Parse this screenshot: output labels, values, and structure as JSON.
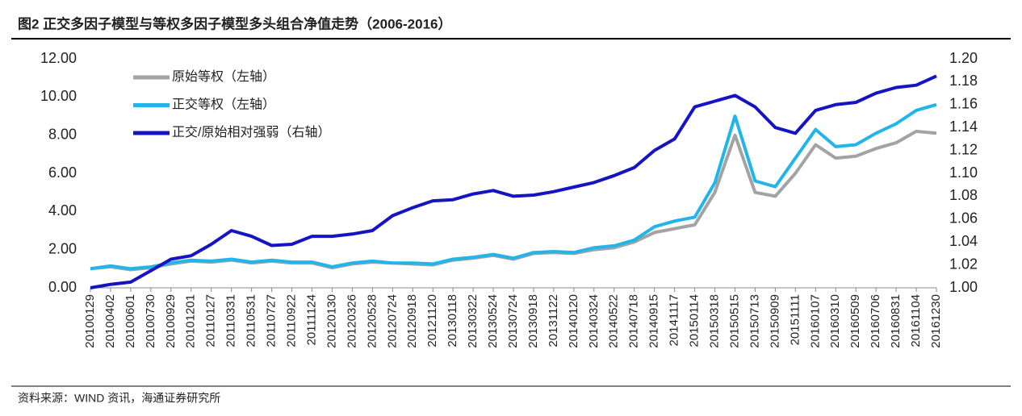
{
  "chart_data": {
    "type": "line",
    "title": "图2  正交多因子模型与等权多因子模型多头组合净值走势（2006-2016）",
    "source": "资料来源：WIND 资讯，海通证券研究所",
    "categories": [
      "20100129",
      "20100402",
      "20100601",
      "20100730",
      "20100929",
      "20101201",
      "20110127",
      "20110331",
      "20110531",
      "20110727",
      "20110922",
      "20111124",
      "20120130",
      "20120326",
      "20120528",
      "20120724",
      "20120918",
      "20121120",
      "20130118",
      "20130322",
      "20130524",
      "20130724",
      "20130918",
      "20131122",
      "20140120",
      "20140324",
      "20140522",
      "20140718",
      "20140915",
      "20141117",
      "20150114",
      "20150318",
      "20150515",
      "20150713",
      "20150909",
      "20151111",
      "20160107",
      "20160310",
      "20160509",
      "20160706",
      "20160831",
      "20161104",
      "20161230"
    ],
    "series": [
      {
        "name": "原始等权（左轴）",
        "color": "#a3a3a3",
        "axis": "y",
        "values": [
          1.0,
          1.1,
          0.95,
          1.05,
          1.25,
          1.4,
          1.35,
          1.45,
          1.3,
          1.4,
          1.3,
          1.3,
          1.05,
          1.25,
          1.35,
          1.3,
          1.25,
          1.2,
          1.45,
          1.55,
          1.7,
          1.5,
          1.8,
          1.85,
          1.8,
          2.0,
          2.1,
          2.4,
          2.9,
          3.1,
          3.3,
          5.0,
          8.0,
          5.0,
          4.8,
          6.0,
          7.5,
          6.8,
          6.9,
          7.3,
          7.6,
          8.2,
          8.1
        ]
      },
      {
        "name": "正交等权（左轴）",
        "color": "#21b5e9",
        "axis": "y",
        "values": [
          1.0,
          1.15,
          1.0,
          1.1,
          1.3,
          1.45,
          1.4,
          1.5,
          1.35,
          1.45,
          1.35,
          1.35,
          1.1,
          1.3,
          1.4,
          1.3,
          1.3,
          1.25,
          1.5,
          1.6,
          1.75,
          1.55,
          1.85,
          1.9,
          1.85,
          2.1,
          2.2,
          2.5,
          3.2,
          3.5,
          3.7,
          5.5,
          9.0,
          5.6,
          5.3,
          6.8,
          8.3,
          7.4,
          7.5,
          8.1,
          8.6,
          9.3,
          9.6
        ]
      },
      {
        "name": "正交/原始相对强弱（右轴）",
        "color": "#1414c4",
        "axis": "y2",
        "values": [
          1.0,
          1.003,
          1.005,
          1.015,
          1.025,
          1.028,
          1.038,
          1.05,
          1.045,
          1.037,
          1.038,
          1.045,
          1.045,
          1.047,
          1.05,
          1.063,
          1.07,
          1.076,
          1.077,
          1.082,
          1.085,
          1.08,
          1.081,
          1.084,
          1.088,
          1.092,
          1.098,
          1.105,
          1.12,
          1.13,
          1.158,
          1.163,
          1.168,
          1.158,
          1.14,
          1.135,
          1.155,
          1.16,
          1.162,
          1.17,
          1.175,
          1.177,
          1.185
        ]
      }
    ],
    "ylim": [
      0,
      12
    ],
    "yticks": [
      {
        "value": 0,
        "label": "0.00"
      },
      {
        "value": 2,
        "label": "2.00"
      },
      {
        "value": 4,
        "label": "4.00"
      },
      {
        "value": 6,
        "label": "6.00"
      },
      {
        "value": 8,
        "label": "8.00"
      },
      {
        "value": 10,
        "label": "10.00"
      },
      {
        "value": 12,
        "label": "12.00"
      }
    ],
    "y2lim": [
      1.0,
      1.2
    ],
    "y2ticks": [
      {
        "value": 1.0,
        "label": "1.00"
      },
      {
        "value": 1.02,
        "label": "1.02"
      },
      {
        "value": 1.04,
        "label": "1.04"
      },
      {
        "value": 1.06,
        "label": "1.06"
      },
      {
        "value": 1.08,
        "label": "1.08"
      },
      {
        "value": 1.1,
        "label": "1.10"
      },
      {
        "value": 1.12,
        "label": "1.12"
      },
      {
        "value": 1.14,
        "label": "1.14"
      },
      {
        "value": 1.16,
        "label": "1.16"
      },
      {
        "value": 1.18,
        "label": "1.18"
      },
      {
        "value": 1.2,
        "label": "1.20"
      }
    ],
    "legend": "upper left",
    "grid": false
  }
}
